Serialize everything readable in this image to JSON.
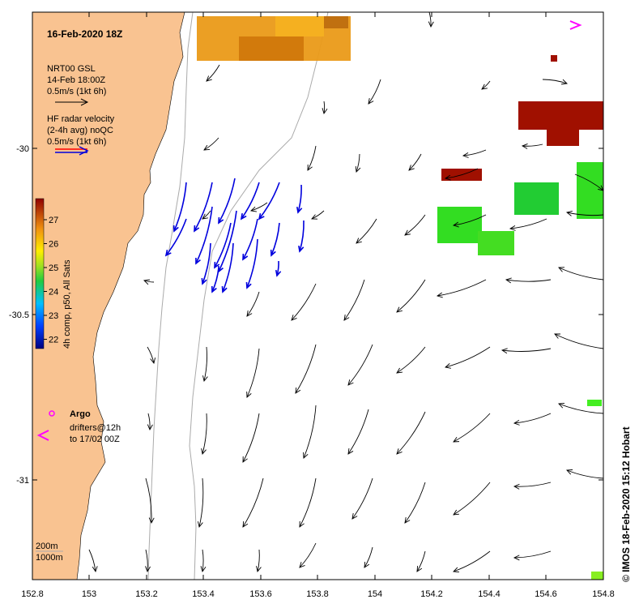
{
  "map": {
    "title": "16-Feb-2020 18Z",
    "credit": "© IMOS 18-Feb-2020 15:12 Hobart",
    "x_ticks": [
      "152.8",
      "153",
      "153.2",
      "153.4",
      "153.6",
      "153.8",
      "154",
      "154.2",
      "154.4",
      "154.6",
      "154.8"
    ],
    "y_ticks": [
      "-30",
      "-30.5",
      "-31"
    ],
    "lon_range": [
      152.8,
      154.8
    ],
    "lat_range": [
      -31.3,
      -29.6
    ]
  },
  "legend": {
    "gsl_line1": "NRT00 GSL",
    "gsl_line2": "14-Feb 18:00Z",
    "gsl_line3": "0.5m/s (1kt 6h)",
    "hf_line1": "HF radar velocity",
    "hf_line2": "(2-4h avg) noQC",
    "hf_line3": "0.5m/s (1kt 6h)",
    "colorbar_label": "4h comp, p50, All Sats",
    "colorbar_ticks": [
      "27",
      "26",
      "25",
      "24",
      "23",
      "22"
    ],
    "argo": "Argo",
    "drifter_line1": "drifters@12h",
    "drifter_line2": "to 17/02 00Z",
    "depth1": "200m",
    "depth2": "1000m"
  },
  "colors": {
    "land": "#f9c391",
    "hf_arrow": "#0000dd",
    "argo": "#ff00ff",
    "sst_warm": "#e08a10",
    "sst_red": "#a01000",
    "sst_green": "#33dd22"
  }
}
